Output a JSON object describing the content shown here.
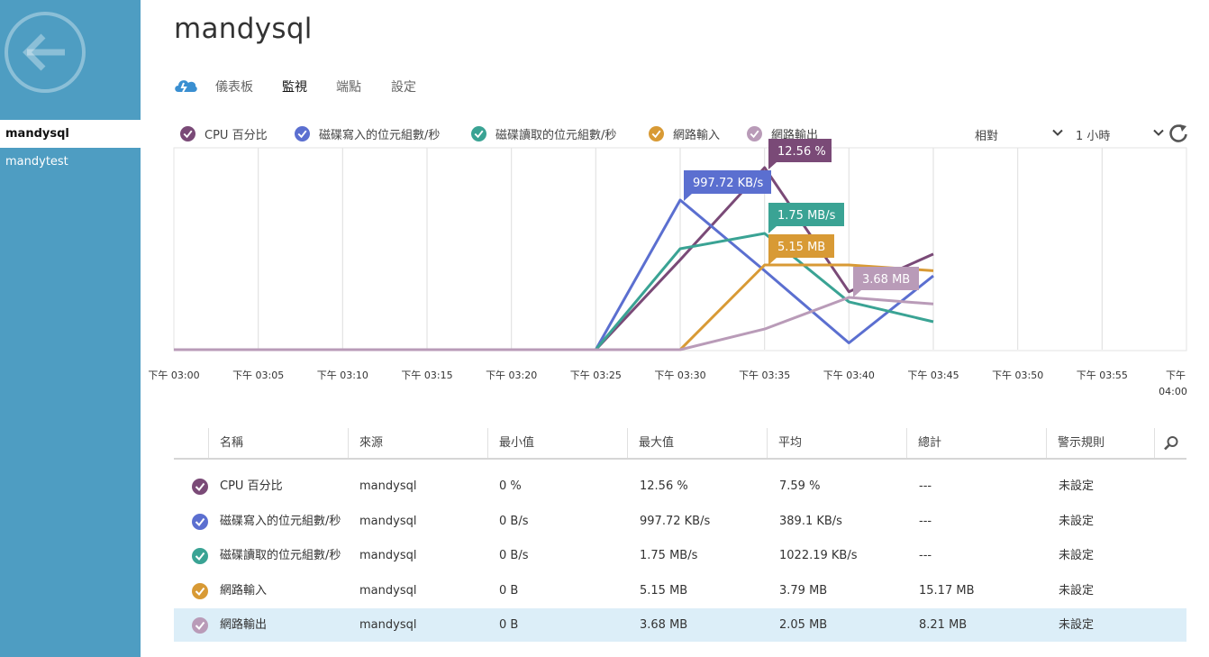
{
  "sidebar": {
    "items": [
      {
        "label": "mandysql",
        "active": true
      },
      {
        "label": "mandytest",
        "active": false
      }
    ]
  },
  "header": {
    "title": "mandysql",
    "tabs": [
      {
        "label": "儀表板",
        "active": false
      },
      {
        "label": "監視",
        "active": true
      },
      {
        "label": "端點",
        "active": false
      },
      {
        "label": "設定",
        "active": false
      }
    ]
  },
  "legend": [
    {
      "label": "CPU 百分比",
      "color": "#7a4a77"
    },
    {
      "label": "磁碟寫入的位元組數/秒",
      "color": "#5b6fd0"
    },
    {
      "label": "磁碟讀取的位元組數/秒",
      "color": "#3aa394"
    },
    {
      "label": "網路輸入",
      "color": "#d89a35"
    },
    {
      "label": "網路輸出",
      "color": "#b99bb8"
    }
  ],
  "controls": {
    "scale_value": "相對",
    "range_value": "1 小時"
  },
  "chart_data": {
    "type": "line",
    "x": [
      "下午 03:00",
      "下午 03:05",
      "下午 03:10",
      "下午 03:15",
      "下午 03:20",
      "下午 03:25",
      "下午 03:30",
      "下午 03:35",
      "下午 03:40",
      "下午 03:45",
      "下午 03:50",
      "下午 03:55",
      "下午 04:00"
    ],
    "tick_labels": [
      "下午 03:00",
      "下午 03:05",
      "下午 03:10",
      "下午 03:15",
      "下午 03:20",
      "下午 03:25",
      "下午 03:30",
      "下午 03:35",
      "下午 03:40",
      "下午 03:45",
      "下午 03:50",
      "下午 03:55",
      "下午",
      "04:00"
    ],
    "scale": "relative",
    "grid": true,
    "series": [
      {
        "name": "CPU 百分比",
        "color": "#7a4a77",
        "max": "12.56 %",
        "values": [
          0,
          0,
          0,
          0,
          0,
          0,
          6.2,
          12.56,
          4.0,
          6.6,
          null,
          null,
          null
        ]
      },
      {
        "name": "磁碟寫入的位元組數/秒",
        "color": "#5b6fd0",
        "max": "997.72 KB/s",
        "values": [
          0,
          0,
          0,
          0,
          0,
          0,
          997.72,
          526.8,
          45.3,
          492.4,
          null,
          null,
          null
        ]
      },
      {
        "name": "磁碟讀取的位元組數/秒",
        "color": "#3aa394",
        "max": "1.75 MB/s",
        "values": [
          0,
          0,
          0,
          0,
          0,
          0,
          1.52,
          1.75,
          0.72,
          0.42,
          null,
          null,
          null
        ]
      },
      {
        "name": "網路輸入",
        "color": "#d89a35",
        "max": "5.15 MB",
        "values": [
          0,
          0,
          0,
          0,
          0,
          0,
          0,
          5.15,
          5.15,
          4.8,
          null,
          null,
          null
        ]
      },
      {
        "name": "網路輸出",
        "color": "#b99bb8",
        "max": "3.68 MB",
        "values": [
          0,
          0,
          0,
          0,
          0,
          0,
          0,
          1.45,
          3.68,
          3.22,
          null,
          null,
          null
        ]
      }
    ],
    "callouts": [
      {
        "text": "12.56 %",
        "color": "#7a4a77"
      },
      {
        "text": "997.72 KB/s",
        "color": "#5b6fd0"
      },
      {
        "text": "1.75 MB/s",
        "color": "#3aa394"
      },
      {
        "text": "5.15 MB",
        "color": "#d89a35"
      },
      {
        "text": "3.68 MB",
        "color": "#b99bb8"
      }
    ]
  },
  "table": {
    "headers": [
      "名稱",
      "來源",
      "最小值",
      "最大值",
      "平均",
      "總計",
      "警示規則"
    ],
    "rows": [
      {
        "color": "#7a4a77",
        "name": "CPU 百分比",
        "source": "mandysql",
        "min": "0 %",
        "max": "12.56 %",
        "avg": "7.59 %",
        "total": "---",
        "alert": "未設定",
        "selected": false
      },
      {
        "color": "#5b6fd0",
        "name": "磁碟寫入的位元組數/秒",
        "source": "mandysql",
        "min": "0 B/s",
        "max": "997.72 KB/s",
        "avg": "389.1 KB/s",
        "total": "---",
        "alert": "未設定",
        "selected": false
      },
      {
        "color": "#3aa394",
        "name": "磁碟讀取的位元組數/秒",
        "source": "mandysql",
        "min": "0 B/s",
        "max": "1.75 MB/s",
        "avg": "1022.19 KB/s",
        "total": "---",
        "alert": "未設定",
        "selected": false
      },
      {
        "color": "#d89a35",
        "name": "網路輸入",
        "source": "mandysql",
        "min": "0 B",
        "max": "5.15 MB",
        "avg": "3.79 MB",
        "total": "15.17 MB",
        "alert": "未設定",
        "selected": false
      },
      {
        "color": "#b99bb8",
        "name": "網路輸出",
        "source": "mandysql",
        "min": "0 B",
        "max": "3.68 MB",
        "avg": "2.05 MB",
        "total": "8.21 MB",
        "alert": "未設定",
        "selected": true
      }
    ]
  },
  "icons": {
    "back": "back-arrow-icon",
    "logo": "cloud-service-icon",
    "refresh": "refresh-icon",
    "search": "search-icon",
    "check": "check-icon",
    "chevron": "chevron-down-icon"
  }
}
